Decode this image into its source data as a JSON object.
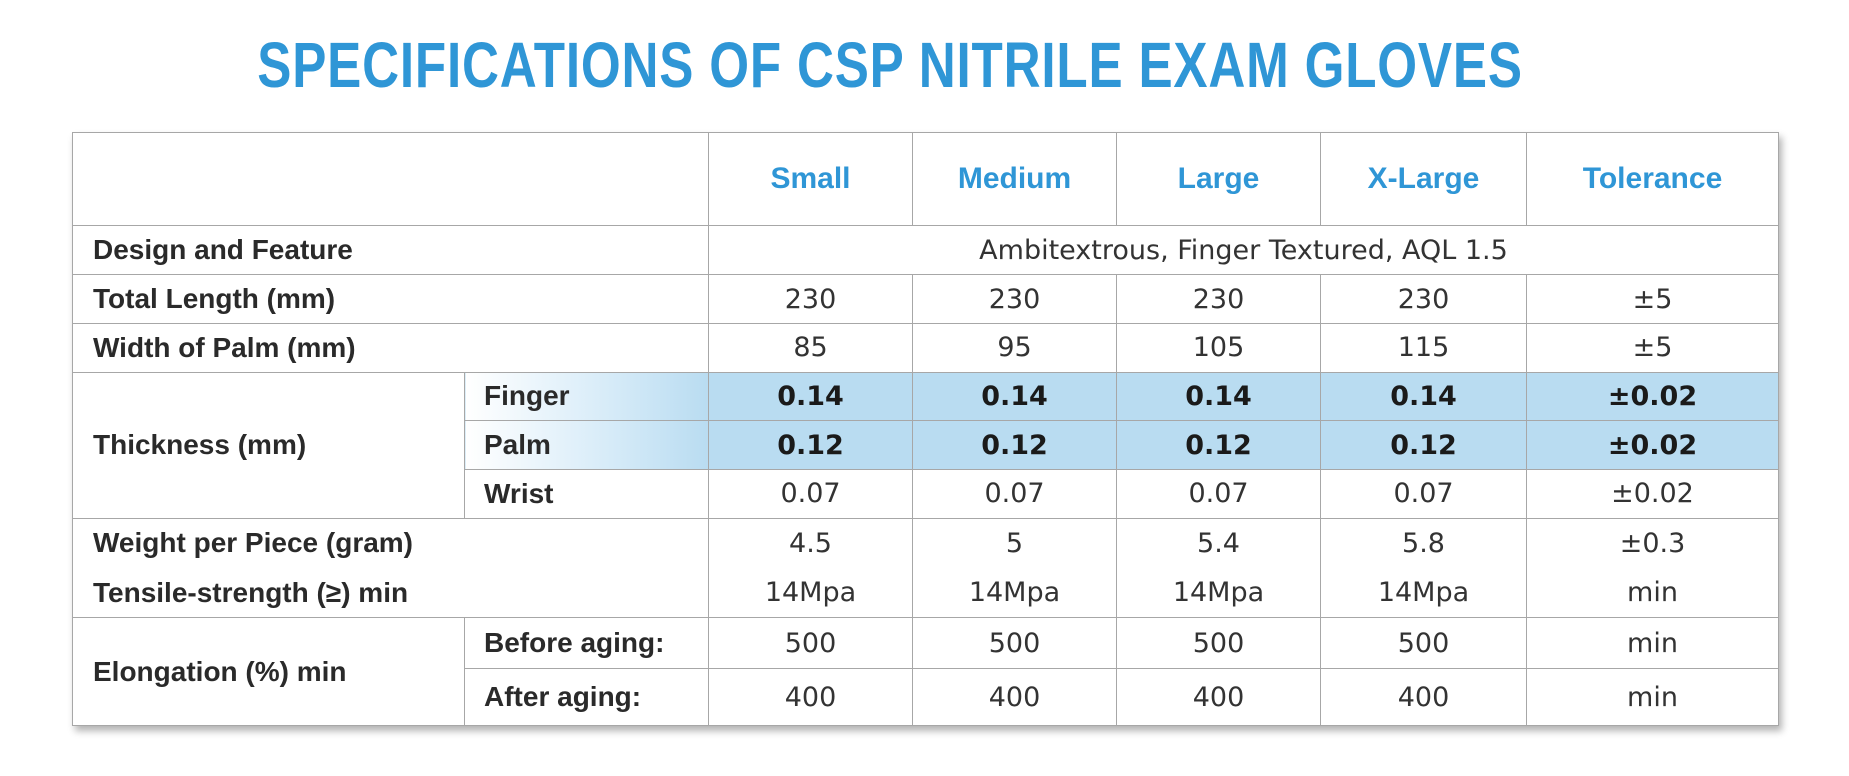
{
  "title": "SPECIFICATIONS OF CSP NITRILE EXAM GLOVES",
  "headers": [
    "Small",
    "Medium",
    "Large",
    "X-Large",
    "Tolerance"
  ],
  "design": {
    "label": "Design and Feature",
    "value": "Ambitextrous, Finger Textured, AQL 1.5"
  },
  "total_length": {
    "label": "Total Length (mm)",
    "values": [
      "230",
      "230",
      "230",
      "230",
      "±5"
    ]
  },
  "palm_width": {
    "label": "Width of Palm (mm)",
    "values": [
      "85",
      "95",
      "105",
      "115",
      "±5"
    ]
  },
  "thickness": {
    "label": "Thickness (mm)",
    "finger": {
      "label": "Finger",
      "values": [
        "0.14",
        "0.14",
        "0.14",
        "0.14",
        "±0.02"
      ]
    },
    "palm": {
      "label": "Palm",
      "values": [
        "0.12",
        "0.12",
        "0.12",
        "0.12",
        "±0.02"
      ]
    },
    "wrist": {
      "label": "Wrist",
      "values": [
        "0.07",
        "0.07",
        "0.07",
        "0.07",
        "±0.02"
      ]
    }
  },
  "weight": {
    "label": "Weight per Piece (gram)",
    "values": [
      "4.5",
      "5",
      "5.4",
      "5.8",
      "±0.3"
    ]
  },
  "tensile": {
    "label": "Tensile-strength (≥) min",
    "values": [
      "14Mpa",
      "14Mpa",
      "14Mpa",
      "14Mpa",
      "min"
    ]
  },
  "elongation": {
    "label": "Elongation (%) min",
    "before": {
      "label": "Before aging:",
      "values": [
        "500",
        "500",
        "500",
        "500",
        "min"
      ]
    },
    "after": {
      "label": "After aging:",
      "values": [
        "400",
        "400",
        "400",
        "400",
        "min"
      ]
    }
  },
  "colors": {
    "accent": "#2f96d6",
    "highlight": "#b9dcf1",
    "border": "#a7a7a7"
  }
}
